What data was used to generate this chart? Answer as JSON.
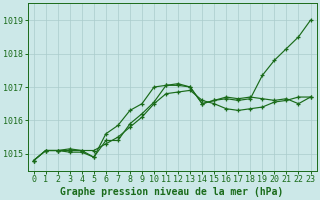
{
  "title": "Graphe pression niveau de la mer (hPa)",
  "xlabel_hours": [
    0,
    1,
    2,
    3,
    4,
    5,
    6,
    7,
    8,
    9,
    10,
    11,
    12,
    13,
    14,
    15,
    16,
    17,
    18,
    19,
    20,
    21,
    22,
    23
  ],
  "line1": [
    1014.8,
    1015.1,
    1015.1,
    1015.15,
    1015.1,
    1015.1,
    1015.3,
    1015.5,
    1015.8,
    1016.1,
    1016.5,
    1016.8,
    1016.85,
    1016.9,
    1016.6,
    1016.5,
    1016.35,
    1016.3,
    1016.35,
    1016.4,
    1016.55,
    1016.6,
    1016.7,
    1016.7
  ],
  "line2": [
    1014.8,
    1015.1,
    1015.1,
    1015.05,
    1015.05,
    1014.9,
    1015.4,
    1015.4,
    1015.9,
    1016.2,
    1016.55,
    1017.05,
    1017.1,
    1017.0,
    1016.5,
    1016.6,
    1016.7,
    1016.65,
    1016.7,
    1016.65,
    1016.6,
    1016.65,
    1016.5,
    1016.7
  ],
  "line3": [
    1014.8,
    1015.1,
    1015.1,
    1015.1,
    1015.1,
    1014.9,
    1015.6,
    1015.85,
    1016.3,
    1016.5,
    1017.0,
    1017.05,
    1017.05,
    1017.0,
    1016.5,
    1016.6,
    1016.65,
    1016.6,
    1016.65,
    1017.35,
    1017.8,
    1018.15,
    1018.5,
    1019.0
  ],
  "ylim": [
    1014.5,
    1019.5
  ],
  "xlim": [
    -0.5,
    23.5
  ],
  "yticks": [
    1015,
    1016,
    1017,
    1018,
    1019
  ],
  "xticks": [
    0,
    1,
    2,
    3,
    4,
    5,
    6,
    7,
    8,
    9,
    10,
    11,
    12,
    13,
    14,
    15,
    16,
    17,
    18,
    19,
    20,
    21,
    22,
    23
  ],
  "line_color": "#1a6b1a",
  "bg_color": "#cce8e8",
  "grid_color": "#aacccc",
  "title_color": "#1a6b1a",
  "title_fontsize": 7.0,
  "tick_fontsize": 6.0
}
